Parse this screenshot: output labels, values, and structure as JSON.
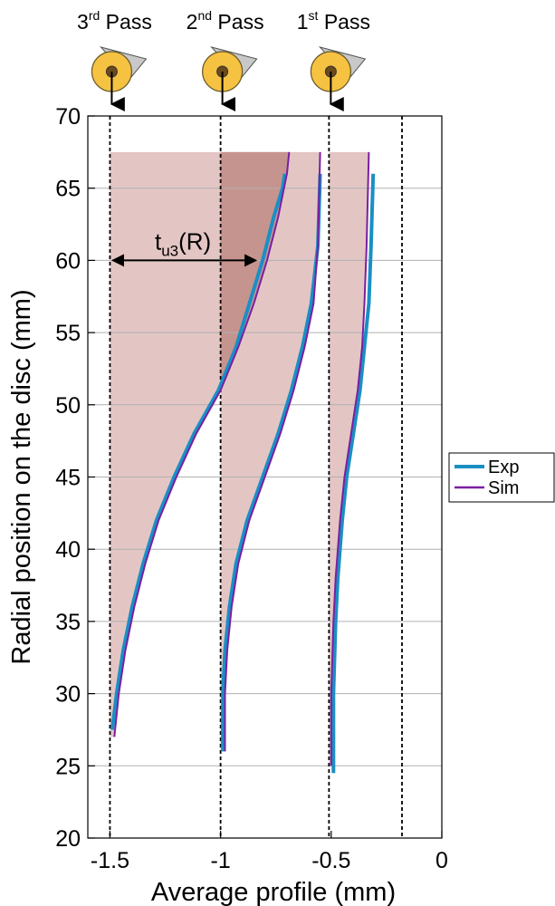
{
  "chart_data": {
    "type": "line",
    "title": "",
    "xlabel": "Average profile (mm)",
    "ylabel": "Radial position on the disc (mm)",
    "xlim": [
      -1.6,
      0
    ],
    "ylim": [
      20,
      70
    ],
    "xticks": [
      -1.5,
      -1,
      -0.5,
      0
    ],
    "xtick_labels": [
      "-1.5",
      "-1",
      "-0.5",
      "0"
    ],
    "yticks": [
      20,
      25,
      30,
      35,
      40,
      45,
      50,
      55,
      60,
      65,
      70
    ],
    "ytick_labels": [
      "20",
      "25",
      "30",
      "35",
      "40",
      "45",
      "50",
      "55",
      "60",
      "65",
      "70"
    ],
    "grid": "horizontal",
    "legend": {
      "position": "right",
      "entries": [
        "Exp",
        "Sim"
      ]
    },
    "vertical_dashed_lines": [
      -1.5,
      -1.0,
      -0.51,
      -0.18
    ],
    "passes": [
      {
        "label_main": "3",
        "label_sup": "rd",
        "label_rest": " Pass",
        "x": -1.5
      },
      {
        "label_main": "2",
        "label_sup": "nd",
        "label_rest": " Pass",
        "x": -1.0
      },
      {
        "label_main": "1",
        "label_sup": "st",
        "label_rest": " Pass",
        "x": -0.51
      }
    ],
    "annotation": {
      "main": "t",
      "sub": "u3",
      "rest": "(R)",
      "x_from": -1.5,
      "x_to": -0.84,
      "y": 60
    },
    "shaded_regions": [
      {
        "top_y": 67.5,
        "x_left": -1.5,
        "x_right_top": -0.7,
        "color": "#d9b3b0"
      },
      {
        "top_y": 67.5,
        "x_left": -1.0,
        "x_right_top": -0.55,
        "color": "#d9b3b0"
      },
      {
        "top_y": 67.5,
        "x_left": -0.51,
        "x_right_top": -0.34,
        "color": "#d9b3b0"
      },
      {
        "top_y": 67.5,
        "x_left": -1.0,
        "x_right_top": -0.7,
        "color": "#c28d87"
      }
    ],
    "series": [
      {
        "name": "Exp",
        "color": "#1a8fc4",
        "curves": [
          {
            "x": [
              -1.49,
              -1.47,
              -1.44,
              -1.4,
              -1.35,
              -1.29,
              -1.21,
              -1.12,
              -1.01,
              -0.93,
              -0.87,
              -0.81,
              -0.76,
              -0.72,
              -0.71
            ],
            "y": [
              27.5,
              30,
              33,
              36,
              39,
              42,
              45,
              48,
              51,
              54,
              57,
              60,
              63,
              65,
              66
            ]
          },
          {
            "x": [
              -0.99,
              -0.99,
              -0.98,
              -0.96,
              -0.93,
              -0.88,
              -0.81,
              -0.74,
              -0.68,
              -0.63,
              -0.59,
              -0.56,
              -0.55
            ],
            "y": [
              26,
              30,
              33,
              36,
              39,
              42,
              45,
              48,
              51,
              54,
              57,
              61,
              66
            ]
          },
          {
            "x": [
              -0.49,
              -0.49,
              -0.48,
              -0.47,
              -0.45,
              -0.43,
              -0.4,
              -0.37,
              -0.35,
              -0.33,
              -0.32,
              -0.31
            ],
            "y": [
              24.5,
              30,
              35,
              38,
              42,
              45,
              48,
              51,
              54,
              57,
              61,
              66
            ]
          }
        ]
      },
      {
        "name": "Sim",
        "color": "#7a1fa2",
        "curves": [
          {
            "x": [
              -1.48,
              -1.46,
              -1.43,
              -1.39,
              -1.34,
              -1.28,
              -1.2,
              -1.11,
              -1.0,
              -0.92,
              -0.85,
              -0.79,
              -0.74,
              -0.7,
              -0.69
            ],
            "y": [
              27,
              30,
              33,
              36,
              39,
              42,
              45,
              48,
              51,
              54,
              57,
              60,
              63,
              66,
              67.5
            ]
          },
          {
            "x": [
              -0.98,
              -0.98,
              -0.97,
              -0.95,
              -0.92,
              -0.87,
              -0.8,
              -0.73,
              -0.67,
              -0.62,
              -0.58,
              -0.56,
              -0.55
            ],
            "y": [
              26,
              30,
              33,
              36,
              39,
              42,
              45,
              48,
              51,
              54,
              57,
              61,
              67.5
            ]
          },
          {
            "x": [
              -0.5,
              -0.5,
              -0.49,
              -0.48,
              -0.46,
              -0.44,
              -0.41,
              -0.38,
              -0.36,
              -0.35,
              -0.34,
              -0.33
            ],
            "y": [
              25,
              30,
              35,
              38,
              42,
              45,
              48,
              51,
              54,
              57,
              61,
              67.5
            ]
          }
        ]
      }
    ]
  }
}
